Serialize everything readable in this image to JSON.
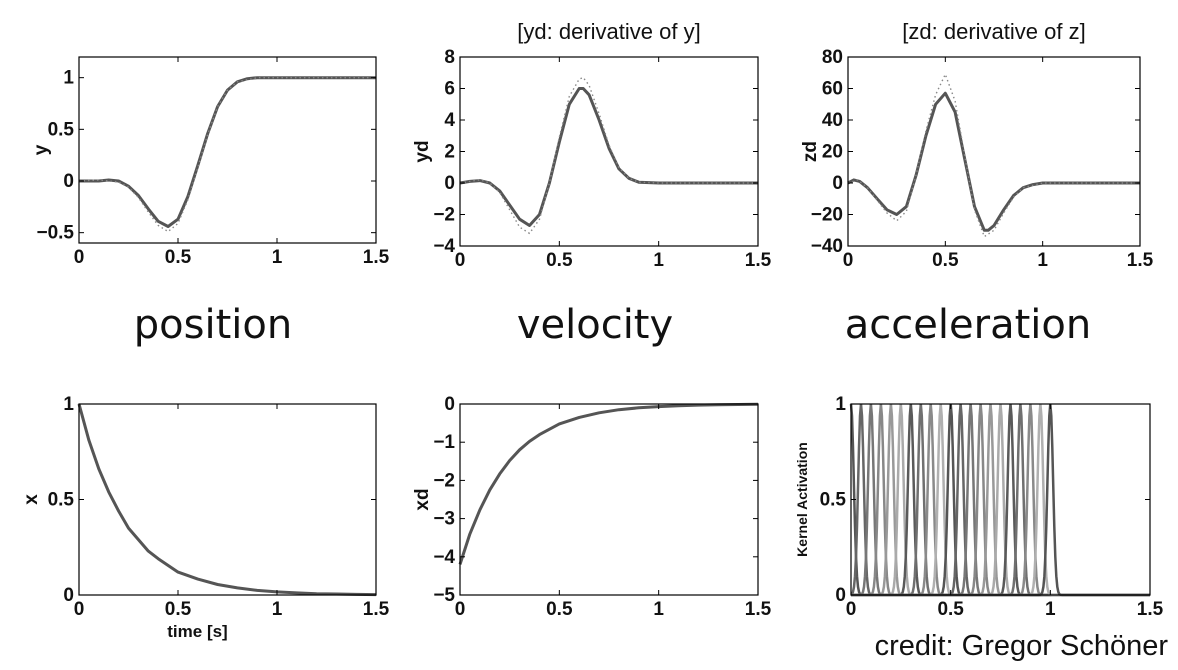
{
  "section_titles": {
    "position": "position",
    "velocity": "velocity",
    "acceleration": "acceleration"
  },
  "credit": "credit: Gregor Schöner",
  "chart_data": [
    {
      "id": "y",
      "type": "line",
      "title": "",
      "xlabel": "",
      "ylabel": "y",
      "xlim": [
        0,
        1.5
      ],
      "ylim": [
        -0.6,
        1.2
      ],
      "xticks": [
        0,
        0.5,
        1,
        1.5
      ],
      "xticklabels": [
        "0",
        "0.5",
        "1",
        "1.5"
      ],
      "yticks": [
        -0.5,
        0,
        0.5,
        1
      ],
      "yticklabels": [
        "−0.5",
        "0",
        "0.5",
        "1"
      ],
      "series": [
        {
          "style": "solid",
          "x": [
            0,
            0.1,
            0.15,
            0.2,
            0.25,
            0.3,
            0.35,
            0.4,
            0.45,
            0.5,
            0.55,
            0.6,
            0.65,
            0.7,
            0.75,
            0.8,
            0.85,
            0.9,
            1.0,
            1.1,
            1.2,
            1.5
          ],
          "y": [
            0,
            0,
            0.01,
            0,
            -0.05,
            -0.14,
            -0.27,
            -0.39,
            -0.44,
            -0.37,
            -0.15,
            0.15,
            0.46,
            0.72,
            0.88,
            0.96,
            0.99,
            1.0,
            1.0,
            1.0,
            1.0,
            1.0
          ]
        },
        {
          "style": "dotted",
          "x": [
            0,
            0.1,
            0.2,
            0.25,
            0.3,
            0.35,
            0.4,
            0.45,
            0.5,
            0.55,
            0.6,
            0.65,
            0.7,
            0.75,
            0.8,
            0.9,
            1.0,
            1.5
          ],
          "y": [
            0,
            0.01,
            -0.01,
            -0.06,
            -0.16,
            -0.3,
            -0.43,
            -0.49,
            -0.41,
            -0.18,
            0.13,
            0.45,
            0.72,
            0.88,
            0.96,
            1.0,
            1.0,
            1.0
          ]
        }
      ]
    },
    {
      "id": "yd",
      "type": "line",
      "title": "[yd: derivative of y]",
      "xlabel": "",
      "ylabel": "yd",
      "xlim": [
        0,
        1.5
      ],
      "ylim": [
        -4,
        8
      ],
      "xticks": [
        0,
        0.5,
        1,
        1.5
      ],
      "xticklabels": [
        "0",
        "0.5",
        "1",
        "1.5"
      ],
      "yticks": [
        -4,
        -2,
        0,
        2,
        4,
        6,
        8
      ],
      "yticklabels": [
        "−4",
        "−2",
        "0",
        "2",
        "4",
        "6",
        "8"
      ],
      "series": [
        {
          "style": "solid",
          "x": [
            0,
            0.05,
            0.1,
            0.15,
            0.2,
            0.25,
            0.3,
            0.35,
            0.4,
            0.45,
            0.5,
            0.55,
            0.6,
            0.62,
            0.65,
            0.7,
            0.75,
            0.8,
            0.85,
            0.9,
            1.0,
            1.5
          ],
          "y": [
            0,
            0.1,
            0.15,
            0,
            -0.5,
            -1.4,
            -2.3,
            -2.7,
            -2.0,
            0,
            2.6,
            5.0,
            6.0,
            6.0,
            5.6,
            4.0,
            2.2,
            0.9,
            0.3,
            0.05,
            0,
            0
          ]
        },
        {
          "style": "dotted",
          "x": [
            0,
            0.1,
            0.15,
            0.2,
            0.25,
            0.3,
            0.35,
            0.4,
            0.45,
            0.5,
            0.55,
            0.6,
            0.62,
            0.65,
            0.7,
            0.75,
            0.8,
            0.85,
            0.9,
            1.0,
            1.5
          ],
          "y": [
            0,
            0.2,
            0,
            -0.6,
            -1.7,
            -2.8,
            -3.2,
            -2.3,
            0,
            2.9,
            5.5,
            6.6,
            6.7,
            6.2,
            4.4,
            2.4,
            1.0,
            0.3,
            0.05,
            0,
            0
          ]
        }
      ]
    },
    {
      "id": "zd",
      "type": "line",
      "title": "[zd: derivative of z]",
      "xlabel": "",
      "ylabel": "zd",
      "xlim": [
        0,
        1.5
      ],
      "ylim": [
        -40,
        80
      ],
      "xticks": [
        0,
        0.5,
        1,
        1.5
      ],
      "xticklabels": [
        "0",
        "0.5",
        "1",
        "1.5"
      ],
      "yticks": [
        -40,
        -20,
        0,
        20,
        40,
        60,
        80
      ],
      "yticklabels": [
        "−40",
        "−20",
        "0",
        "20",
        "40",
        "60",
        "80"
      ],
      "series": [
        {
          "style": "solid",
          "x": [
            0,
            0.03,
            0.06,
            0.1,
            0.15,
            0.2,
            0.25,
            0.3,
            0.35,
            0.4,
            0.45,
            0.5,
            0.55,
            0.6,
            0.65,
            0.7,
            0.72,
            0.75,
            0.8,
            0.85,
            0.9,
            0.95,
            1.0,
            1.1,
            1.5
          ],
          "y": [
            0,
            2,
            1,
            -3,
            -10,
            -17,
            -20,
            -15,
            5,
            30,
            50,
            57,
            45,
            15,
            -15,
            -30,
            -30,
            -27,
            -17,
            -8,
            -3,
            -1,
            0,
            0,
            0
          ]
        },
        {
          "style": "dotted",
          "x": [
            0,
            0.05,
            0.1,
            0.15,
            0.2,
            0.25,
            0.3,
            0.35,
            0.4,
            0.45,
            0.5,
            0.55,
            0.6,
            0.65,
            0.7,
            0.75,
            0.8,
            0.85,
            0.9,
            1.0,
            1.5
          ],
          "y": [
            0,
            2,
            -3,
            -11,
            -19,
            -24,
            -18,
            5,
            33,
            56,
            69,
            52,
            17,
            -17,
            -34,
            -30,
            -19,
            -9,
            -3,
            0,
            0
          ]
        }
      ]
    },
    {
      "id": "x",
      "type": "line",
      "title": "",
      "xlabel": "time [s]",
      "ylabel": "x",
      "xlim": [
        0,
        1.5
      ],
      "ylim": [
        0,
        1
      ],
      "xticks": [
        0,
        0.5,
        1,
        1.5
      ],
      "xticklabels": [
        "0",
        "0.5",
        "1",
        "1.5"
      ],
      "yticks": [
        0,
        0.5,
        1
      ],
      "yticklabels": [
        "0",
        "0.5",
        "1"
      ],
      "series": [
        {
          "style": "solid",
          "x": [
            0,
            0.05,
            0.1,
            0.15,
            0.2,
            0.25,
            0.3,
            0.35,
            0.4,
            0.5,
            0.6,
            0.7,
            0.8,
            0.9,
            1.0,
            1.1,
            1.2,
            1.3,
            1.4,
            1.5
          ],
          "y": [
            1,
            0.81,
            0.66,
            0.54,
            0.44,
            0.35,
            0.29,
            0.23,
            0.19,
            0.12,
            0.083,
            0.055,
            0.037,
            0.024,
            0.016,
            0.011,
            0.007,
            0.005,
            0.003,
            0.002
          ]
        }
      ]
    },
    {
      "id": "xd",
      "type": "line",
      "title": "",
      "xlabel": "",
      "ylabel": "xd",
      "xlim": [
        0,
        1.5
      ],
      "ylim": [
        -5,
        0
      ],
      "xticks": [
        0,
        0.5,
        1,
        1.5
      ],
      "xticklabels": [
        "0",
        "0.5",
        "1",
        "1.5"
      ],
      "yticks": [
        -5,
        -4,
        -3,
        -2,
        -1,
        0
      ],
      "yticklabels": [
        "−5",
        "−4",
        "−3",
        "−2",
        "−1",
        "0"
      ],
      "series": [
        {
          "style": "solid",
          "x": [
            0,
            0.05,
            0.1,
            0.15,
            0.2,
            0.25,
            0.3,
            0.35,
            0.4,
            0.5,
            0.6,
            0.7,
            0.8,
            0.9,
            1.0,
            1.1,
            1.2,
            1.3,
            1.4,
            1.5
          ],
          "y": [
            -4.2,
            -3.4,
            -2.77,
            -2.25,
            -1.83,
            -1.48,
            -1.2,
            -0.98,
            -0.8,
            -0.52,
            -0.35,
            -0.23,
            -0.15,
            -0.1,
            -0.067,
            -0.044,
            -0.029,
            -0.019,
            -0.013,
            -0.008
          ]
        }
      ]
    },
    {
      "id": "kernels",
      "type": "line",
      "title": "",
      "xlabel": "",
      "ylabel": "Kernel Activation",
      "xlim": [
        0,
        1.5
      ],
      "ylim": [
        0,
        1
      ],
      "xticks": [
        0,
        0.5,
        1,
        1.5
      ],
      "xticklabels": [
        "0",
        "0.5",
        "1",
        "1.5"
      ],
      "yticks": [
        0,
        0.5,
        1
      ],
      "yticklabels": [
        "0",
        "0.5",
        "1"
      ],
      "kernel_centers": [
        0.0,
        0.05,
        0.1,
        0.15,
        0.2,
        0.25,
        0.3,
        0.35,
        0.4,
        0.45,
        0.5,
        0.55,
        0.6,
        0.65,
        0.7,
        0.75,
        0.8,
        0.85,
        0.9,
        0.95,
        1.0
      ],
      "kernel_width": 0.018
    }
  ]
}
